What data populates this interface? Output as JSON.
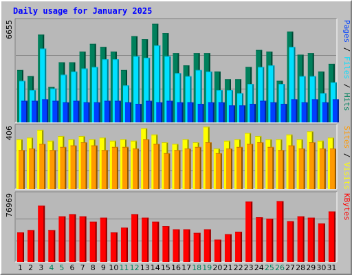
{
  "title": "Daily usage for January 2025",
  "colors": {
    "hits": "#00805c",
    "files": "#00e0ff",
    "pages": "#0040ff",
    "visits": "#ffff00",
    "sites": "#ff9900",
    "kbytes": "#ff0000",
    "title_text": "#0000ff",
    "weekend_label": "#00805c",
    "weekday_label": "#000000"
  },
  "chart_data": [
    {
      "type": "bar",
      "name": "hits-files-pages",
      "ymax_label": "6655",
      "ylim": [
        0,
        6655
      ],
      "legend": [
        "Pages",
        "Files",
        "Hits"
      ],
      "categories": [
        "1",
        "2",
        "3",
        "4",
        "5",
        "6",
        "7",
        "8",
        "9",
        "10",
        "11",
        "12",
        "13",
        "14",
        "15",
        "16",
        "17",
        "18",
        "19",
        "20",
        "21",
        "22",
        "23",
        "24",
        "25",
        "26",
        "27",
        "28",
        "29",
        "30",
        "31"
      ],
      "weekend": [
        "4",
        "5",
        "11",
        "12",
        "18",
        "19",
        "25",
        "26"
      ],
      "series": [
        {
          "name": "Hits",
          "values": [
            3400,
            3000,
            5700,
            2300,
            3900,
            3900,
            4600,
            5100,
            4900,
            4600,
            3400,
            5600,
            5400,
            6400,
            5800,
            4500,
            3700,
            4500,
            4500,
            3300,
            2800,
            2800,
            3600,
            4700,
            4600,
            2700,
            5900,
            4400,
            4500,
            3300,
            3800
          ]
        },
        {
          "name": "Files",
          "values": [
            2700,
            2100,
            4800,
            2200,
            3100,
            3300,
            3500,
            3600,
            4100,
            4100,
            2400,
            4300,
            4200,
            5000,
            4300,
            3200,
            3000,
            3400,
            3300,
            2100,
            2100,
            1900,
            2500,
            3600,
            3700,
            2500,
            4900,
            3000,
            3000,
            1900,
            2600
          ]
        },
        {
          "name": "Pages",
          "values": [
            1400,
            1400,
            1500,
            1400,
            1300,
            1400,
            1300,
            1300,
            1400,
            1400,
            1300,
            1200,
            1400,
            1300,
            1400,
            1300,
            1300,
            1200,
            1300,
            1300,
            1100,
            1100,
            1200,
            1400,
            1300,
            1200,
            1500,
            1300,
            1500,
            1300,
            1500
          ]
        }
      ]
    },
    {
      "type": "bar",
      "name": "visits-sites",
      "ymax_label": "406",
      "ylim": [
        0,
        406
      ],
      "legend": [
        "Sites",
        "Visits"
      ],
      "categories": [
        "1",
        "2",
        "3",
        "4",
        "5",
        "6",
        "7",
        "8",
        "9",
        "10",
        "11",
        "12",
        "13",
        "14",
        "15",
        "16",
        "17",
        "18",
        "19",
        "20",
        "21",
        "22",
        "23",
        "24",
        "25",
        "26",
        "27",
        "28",
        "29",
        "30",
        "31"
      ],
      "series": [
        {
          "name": "Visits",
          "values": [
            320,
            330,
            380,
            310,
            340,
            320,
            340,
            320,
            330,
            310,
            320,
            310,
            390,
            350,
            300,
            290,
            320,
            300,
            400,
            260,
            310,
            320,
            360,
            340,
            320,
            320,
            350,
            320,
            370,
            310,
            330
          ]
        },
        {
          "name": "Sites",
          "values": [
            250,
            260,
            290,
            250,
            270,
            280,
            300,
            280,
            250,
            270,
            270,
            260,
            320,
            290,
            230,
            250,
            260,
            270,
            300,
            230,
            260,
            270,
            290,
            300,
            270,
            250,
            280,
            260,
            300,
            260,
            260
          ]
        }
      ]
    },
    {
      "type": "bar",
      "name": "kbytes",
      "ymax_label": "76969",
      "ylim": [
        0,
        76969
      ],
      "legend": [
        "KBytes"
      ],
      "categories": [
        "1",
        "2",
        "3",
        "4",
        "5",
        "6",
        "7",
        "8",
        "9",
        "10",
        "11",
        "12",
        "13",
        "14",
        "15",
        "16",
        "17",
        "18",
        "19",
        "20",
        "21",
        "22",
        "23",
        "24",
        "25",
        "26",
        "27",
        "28",
        "29",
        "30",
        "31"
      ],
      "series": [
        {
          "name": "KBytes",
          "values": [
            33000,
            35500,
            63000,
            35500,
            51000,
            53500,
            51000,
            45000,
            49500,
            33000,
            38500,
            53500,
            49500,
            45000,
            40000,
            36500,
            36500,
            32500,
            36500,
            25000,
            31000,
            33800,
            67500,
            50000,
            48500,
            68000,
            45500,
            51000,
            49500,
            43000,
            56500
          ]
        }
      ]
    }
  ]
}
